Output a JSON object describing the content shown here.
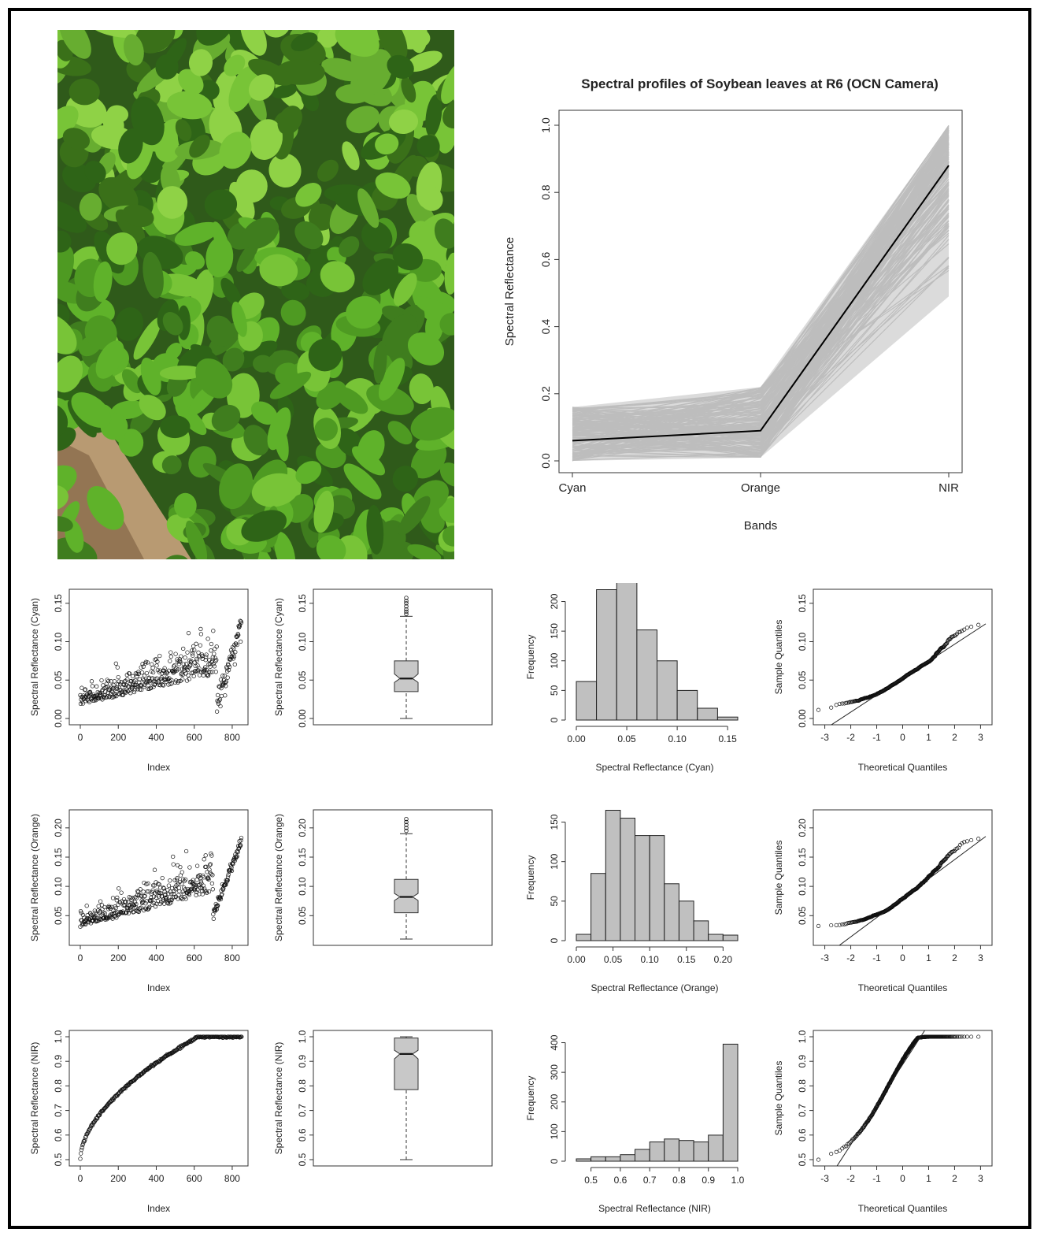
{
  "main_chart": {
    "title": "Spectral profiles of Soybean leaves at R6 (OCN Camera)",
    "xlabel": "Bands",
    "ylabel": "Spectral Reflectance",
    "yticks": [
      "0.0",
      "0.2",
      "0.4",
      "0.6",
      "0.8",
      "1.0"
    ],
    "mean_color": "#000000",
    "sample_color": "#bdbdbd"
  },
  "labels": {
    "index": "Index",
    "frequency": "Frequency",
    "sample_quantiles": "Sample Quantiles",
    "theoretical_quantiles": "Theoretical Quantiles",
    "refl_cyan": "Spectral Reflectance (Cyan)",
    "refl_orange": "Spectral Reflectance (Orange)",
    "refl_nir": "Spectral Reflectance (NIR)"
  },
  "chart_data": [
    {
      "type": "line",
      "title": "Spectral profiles of Soybean leaves at R6 (OCN Camera)",
      "categories": [
        "Cyan",
        "Orange",
        "NIR"
      ],
      "series": [
        {
          "values": [
            0.06,
            0.09,
            0.88
          ]
        }
      ],
      "sample_envelope": {
        "min": [
          0.0,
          0.01,
          0.49
        ],
        "max": [
          0.16,
          0.22,
          1.0
        ]
      },
      "xlabel": "Bands",
      "ylabel": "Spectral Reflectance",
      "ylim": [
        0,
        1.0
      ]
    },
    {
      "type": "scatter",
      "band": "Cyan",
      "x_range": [
        0,
        850
      ],
      "y_range": [
        0.0,
        0.16
      ],
      "xticks": [
        "0",
        "200",
        "400",
        "600",
        "800"
      ],
      "yticks": [
        "0.00",
        "0.05",
        "0.10",
        "0.15"
      ],
      "xlabel": "Index",
      "ylabel": "Spectral Reflectance (Cyan)"
    },
    {
      "type": "box",
      "band": "Cyan",
      "stats": {
        "min": 0.0,
        "q1": 0.035,
        "median": 0.052,
        "q3": 0.075,
        "max": 0.133,
        "notch_low": 0.047,
        "notch_high": 0.058
      },
      "outliers": [
        0.136,
        0.139,
        0.142,
        0.146,
        0.15,
        0.153,
        0.157
      ],
      "yticks": [
        "0.00",
        "0.05",
        "0.10",
        "0.15"
      ],
      "ylabel": "Spectral Reflectance (Cyan)"
    },
    {
      "type": "bar",
      "band": "Cyan",
      "bin_edges": [
        0.0,
        0.02,
        0.04,
        0.06,
        0.08,
        0.1,
        0.12,
        0.14,
        0.16
      ],
      "values": [
        65,
        220,
        232,
        152,
        100,
        50,
        20,
        5
      ],
      "xticks": [
        "0.00",
        "0.05",
        "0.10",
        "0.15"
      ],
      "yticks": [
        "0",
        "50",
        "100",
        "150",
        "200"
      ],
      "xlabel": "Spectral Reflectance (Cyan)",
      "ylabel": "Frequency"
    },
    {
      "type": "scatter",
      "subtype": "qq",
      "band": "Cyan",
      "x_range": [
        -3.2,
        3.2
      ],
      "y_range": [
        0.0,
        0.16
      ],
      "xticks": [
        "-3",
        "-2",
        "-1",
        "0",
        "1",
        "2",
        "3"
      ],
      "yticks": [
        "0.00",
        "0.05",
        "0.10",
        "0.15"
      ],
      "xlabel": "Theoretical Quantiles",
      "ylabel": "Sample Quantiles"
    },
    {
      "type": "scatter",
      "band": "Orange",
      "x_range": [
        0,
        850
      ],
      "y_range": [
        0.01,
        0.22
      ],
      "xticks": [
        "0",
        "200",
        "400",
        "600",
        "800"
      ],
      "yticks": [
        "0.05",
        "0.10",
        "0.15",
        "0.20"
      ],
      "xlabel": "Index",
      "ylabel": "Spectral Reflectance (Orange)"
    },
    {
      "type": "box",
      "band": "Orange",
      "stats": {
        "min": 0.01,
        "q1": 0.055,
        "median": 0.082,
        "q3": 0.112,
        "max": 0.19,
        "notch_low": 0.076,
        "notch_high": 0.088
      },
      "outliers": [
        0.195,
        0.2,
        0.205,
        0.21,
        0.215
      ],
      "yticks": [
        "0.05",
        "0.10",
        "0.15",
        "0.20"
      ],
      "ylabel": "Spectral Reflectance (Orange)"
    },
    {
      "type": "bar",
      "band": "Orange",
      "bin_edges": [
        0.0,
        0.02,
        0.04,
        0.06,
        0.08,
        0.1,
        0.12,
        0.14,
        0.16,
        0.18,
        0.2,
        0.22
      ],
      "values": [
        8,
        85,
        165,
        155,
        133,
        133,
        72,
        50,
        25,
        8,
        7
      ],
      "xticks": [
        "0.00",
        "0.05",
        "0.10",
        "0.15",
        "0.20"
      ],
      "yticks": [
        "0",
        "50",
        "100",
        "150"
      ],
      "xlabel": "Spectral Reflectance (Orange)",
      "ylabel": "Frequency"
    },
    {
      "type": "scatter",
      "subtype": "qq",
      "band": "Orange",
      "x_range": [
        -3.2,
        3.2
      ],
      "y_range": [
        0.01,
        0.22
      ],
      "xticks": [
        "-3",
        "-2",
        "-1",
        "0",
        "1",
        "2",
        "3"
      ],
      "yticks": [
        "0.05",
        "0.10",
        "0.15",
        "0.20"
      ],
      "xlabel": "Theoretical Quantiles",
      "ylabel": "Sample Quantiles"
    },
    {
      "type": "scatter",
      "band": "NIR",
      "x_range": [
        0,
        850
      ],
      "y_range": [
        0.5,
        1.0
      ],
      "xticks": [
        "0",
        "200",
        "400",
        "600",
        "800"
      ],
      "yticks": [
        "0.5",
        "0.6",
        "0.7",
        "0.8",
        "0.9",
        "1.0"
      ],
      "xlabel": "Index",
      "ylabel": "Spectral Reflectance (NIR)"
    },
    {
      "type": "box",
      "band": "NIR",
      "stats": {
        "min": 0.5,
        "q1": 0.785,
        "median": 0.93,
        "q3": 0.995,
        "max": 1.0,
        "notch_low": 0.91,
        "notch_high": 0.945
      },
      "outliers": [],
      "yticks": [
        "0.5",
        "0.6",
        "0.7",
        "0.8",
        "0.9",
        "1.0"
      ],
      "ylabel": "Spectral Reflectance (NIR)"
    },
    {
      "type": "bar",
      "band": "NIR",
      "bin_edges": [
        0.45,
        0.5,
        0.55,
        0.6,
        0.65,
        0.7,
        0.75,
        0.8,
        0.85,
        0.9,
        0.95,
        1.0
      ],
      "values": [
        8,
        15,
        15,
        22,
        40,
        65,
        75,
        70,
        65,
        88,
        395
      ],
      "xticks": [
        "0.5",
        "0.6",
        "0.7",
        "0.8",
        "0.9",
        "1.0"
      ],
      "yticks": [
        "0",
        "100",
        "200",
        "300",
        "400"
      ],
      "xlabel": "Spectral Reflectance (NIR)",
      "ylabel": "Frequency"
    },
    {
      "type": "scatter",
      "subtype": "qq",
      "band": "NIR",
      "x_range": [
        -3.2,
        3.2
      ],
      "y_range": [
        0.5,
        1.0
      ],
      "xticks": [
        "-3",
        "-2",
        "-1",
        "0",
        "1",
        "2",
        "3"
      ],
      "yticks": [
        "0.5",
        "0.6",
        "0.7",
        "0.8",
        "0.9",
        "1.0"
      ],
      "xlabel": "Theoretical Quantiles",
      "ylabel": "Sample Quantiles"
    }
  ]
}
